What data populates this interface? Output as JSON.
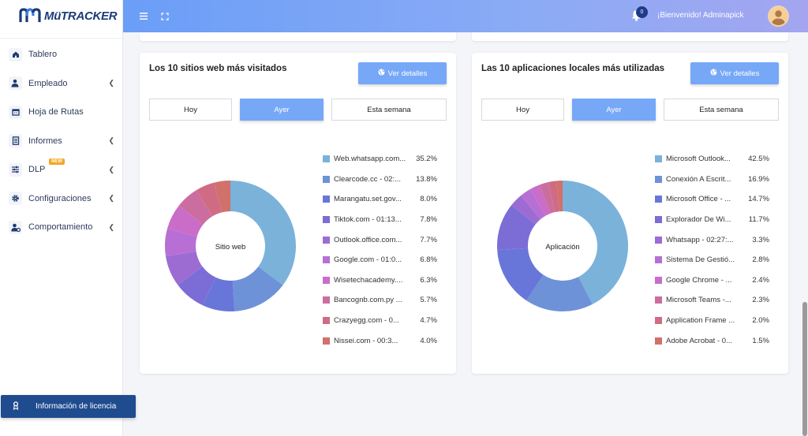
{
  "app": {
    "brand": "MüTRACKER"
  },
  "sidebar": {
    "items": [
      {
        "label": "Tablero",
        "icon": "home-icon"
      },
      {
        "label": "Empleado",
        "icon": "user-icon",
        "expandable": true
      },
      {
        "label": "Hoja de Rutas",
        "icon": "calendar-icon"
      },
      {
        "label": "Informes",
        "icon": "document-icon",
        "expandable": true
      },
      {
        "label": "DLP",
        "icon": "sliders-icon",
        "expandable": true,
        "badge": "NEW"
      },
      {
        "label": "Configuraciones",
        "icon": "gear-icon",
        "expandable": true
      },
      {
        "label": "Comportamiento",
        "icon": "users-gear-icon",
        "expandable": true
      }
    ],
    "license_label": "Información de licencia"
  },
  "header": {
    "notification_count": "0",
    "welcome_text": "¡Bienvenido!  Adminapick"
  },
  "cards": [
    {
      "title": "Los 10 sitios web más visitados",
      "details_label": "Ver detalles",
      "tabs": [
        {
          "label": "Hoy",
          "active": false
        },
        {
          "label": "Ayer",
          "active": true
        },
        {
          "label": "Esta semana",
          "active": false
        }
      ],
      "center_label": "Sitio web",
      "legend": [
        {
          "name": "Web.whatsapp.com...",
          "pct": "35.2%",
          "value": 35.2,
          "color": "#7bb2da"
        },
        {
          "name": "Clearcode.cc - 02:...",
          "pct": "13.8%",
          "value": 13.8,
          "color": "#6e92d8"
        },
        {
          "name": "Marangatu.set.gov...",
          "pct": "8.0%",
          "value": 8.0,
          "color": "#6976d9"
        },
        {
          "name": "Tiktok.com - 01:13...",
          "pct": "7.8%",
          "value": 7.8,
          "color": "#7b6cd6"
        },
        {
          "name": "Outlook.office.com...",
          "pct": "7.7%",
          "value": 7.7,
          "color": "#9c6cd3"
        },
        {
          "name": "Google.com - 01:0...",
          "pct": "6.8%",
          "value": 6.8,
          "color": "#b76fd6"
        },
        {
          "name": "Wisetechacademy....",
          "pct": "6.3%",
          "value": 6.3,
          "color": "#c96dc8"
        },
        {
          "name": "Bancognb.com.py ...",
          "pct": "5.7%",
          "value": 5.7,
          "color": "#cc6da0"
        },
        {
          "name": "Crazyegg.com - 0...",
          "pct": "4.7%",
          "value": 4.7,
          "color": "#cf6c84"
        },
        {
          "name": "Nissei.com - 00:3...",
          "pct": "4.0%",
          "value": 4.0,
          "color": "#d2706b"
        }
      ]
    },
    {
      "title": "Las 10 aplicaciones locales más utilizadas",
      "details_label": "Ver detalles",
      "tabs": [
        {
          "label": "Hoy",
          "active": false
        },
        {
          "label": "Ayer",
          "active": true
        },
        {
          "label": "Esta semana",
          "active": false
        }
      ],
      "center_label": "Aplicación",
      "legend": [
        {
          "name": "Microsoft Outlook...",
          "pct": "42.5%",
          "value": 42.5,
          "color": "#7bb2da"
        },
        {
          "name": "Conexión A Escrit...",
          "pct": "16.9%",
          "value": 16.9,
          "color": "#6e92d8"
        },
        {
          "name": "Microsoft Office - ...",
          "pct": "14.7%",
          "value": 14.7,
          "color": "#6976d9"
        },
        {
          "name": "Explorador De Wi...",
          "pct": "11.7%",
          "value": 11.7,
          "color": "#7b6cd6"
        },
        {
          "name": "Whatsapp - 02:27:...",
          "pct": "3.3%",
          "value": 3.3,
          "color": "#9c6cd3"
        },
        {
          "name": "Sistema De Gestió...",
          "pct": "2.8%",
          "value": 2.8,
          "color": "#b76fd6"
        },
        {
          "name": "Google Chrome - ...",
          "pct": "2.4%",
          "value": 2.4,
          "color": "#c96dc8"
        },
        {
          "name": "Microsoft Teams -...",
          "pct": "2.3%",
          "value": 2.3,
          "color": "#cc6da0"
        },
        {
          "name": "Application Frame ...",
          "pct": "2.0%",
          "value": 2.0,
          "color": "#cf6c84"
        },
        {
          "name": "Adobe Acrobat - 0...",
          "pct": "1.5%",
          "value": 1.5,
          "color": "#d2706b"
        }
      ]
    }
  ]
}
